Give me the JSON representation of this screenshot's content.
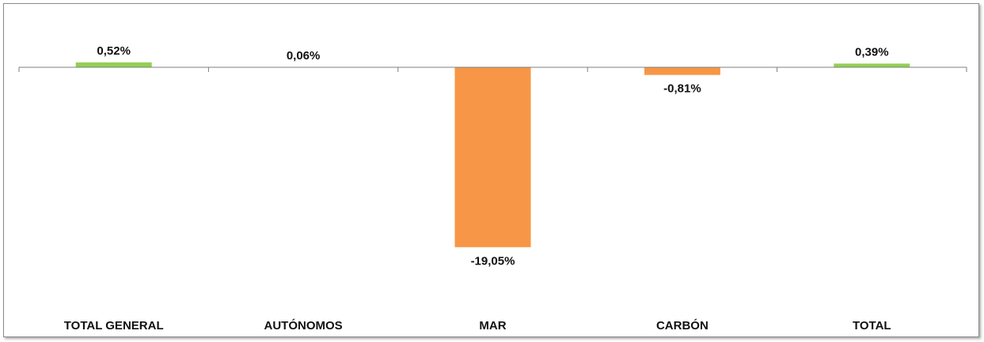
{
  "chart_data": {
    "type": "bar",
    "categories": [
      "TOTAL GENERAL",
      "AUTÓNOMOS",
      "MAR",
      "CARBÓN",
      "TOTAL"
    ],
    "values": [
      0.52,
      0.06,
      -19.05,
      -0.81,
      0.39
    ],
    "value_labels": [
      "0,52%",
      "0,06%",
      "-19,05%",
      "-0,81%",
      "0,39%"
    ],
    "ylim": [
      -20,
      1
    ],
    "grid": false,
    "legend": "none",
    "colors": {
      "positive": "#92d050",
      "negative": "#f79646",
      "axis": "#7f7f7f"
    }
  }
}
